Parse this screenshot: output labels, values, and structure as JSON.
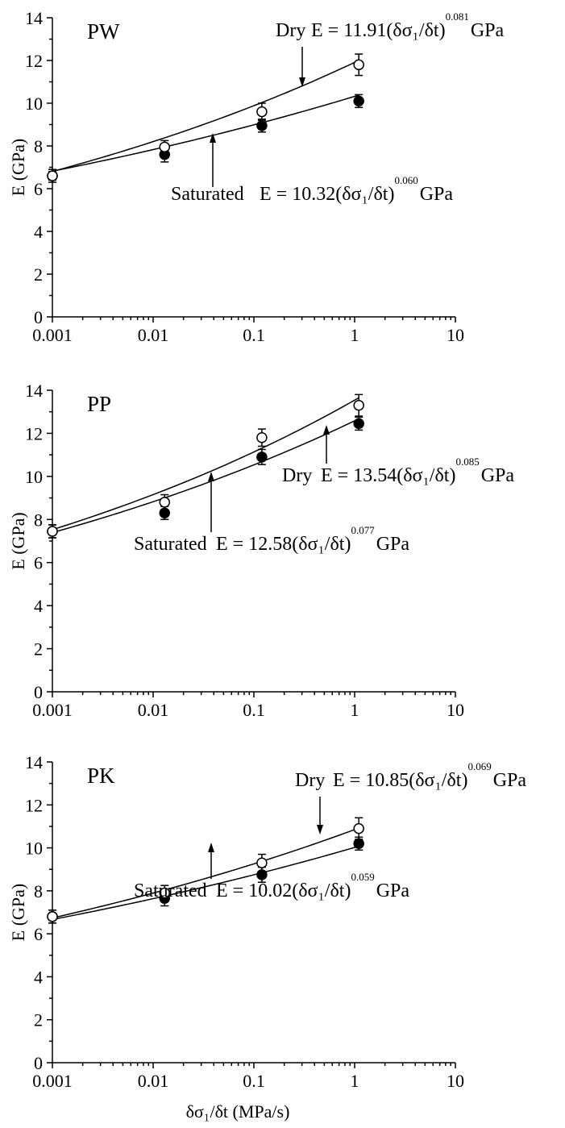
{
  "chart_data": [
    {
      "type": "scatter",
      "title": "PW",
      "y_label": "E (GPa)",
      "xscale": "log",
      "minor_ticks": true,
      "xlim": [
        0.001,
        10
      ],
      "ylim": [
        0,
        14
      ],
      "xticks": [
        0.001,
        0.01,
        0.1,
        1,
        10
      ],
      "yticks": [
        0,
        2,
        4,
        6,
        8,
        10,
        12,
        14
      ],
      "x": [
        0.001,
        0.013,
        0.12,
        1.1
      ],
      "series": [
        {
          "name": "Dry",
          "marker": "open",
          "color": "#000000",
          "values": [
            6.6,
            7.95,
            9.6,
            11.8
          ],
          "errors": [
            0.2,
            0.3,
            0.4,
            0.5
          ],
          "fit": {
            "lhs": "E =",
            "coef": 11.91,
            "base": "(δσ₁/δt)",
            "exponent": 0.081,
            "unit": "GPa"
          }
        },
        {
          "name": "Saturated",
          "marker": "filled",
          "color": "#000000",
          "values": [
            6.6,
            7.6,
            8.95,
            10.1
          ],
          "errors": [
            0.3,
            0.35,
            0.3,
            0.3
          ],
          "fit": {
            "lhs": "E =",
            "coef": 10.32,
            "base": "(δσ₁/δt)",
            "exponent": {
              "value": 0.06,
              "label": "0.060"
            },
            "unit": "GPa"
          }
        }
      ]
    },
    {
      "type": "scatter",
      "title": "PP",
      "y_label": "E (GPa)",
      "xscale": "log",
      "minor_ticks": true,
      "xlim": [
        0.001,
        10
      ],
      "ylim": [
        0,
        14
      ],
      "xticks": [
        0.001,
        0.01,
        0.1,
        1,
        10
      ],
      "yticks": [
        0,
        2,
        4,
        6,
        8,
        10,
        12,
        14
      ],
      "x": [
        0.001,
        0.013,
        0.12,
        1.1
      ],
      "series": [
        {
          "name": "Dry",
          "marker": "open",
          "color": "#000000",
          "values": [
            7.45,
            8.8,
            11.8,
            13.3
          ],
          "errors": [
            0.3,
            0.35,
            0.4,
            0.5
          ],
          "fit": {
            "lhs": "E =",
            "coef": 13.54,
            "base": "(δσ₁/δt)",
            "exponent": 0.085,
            "unit": "GPa"
          }
        },
        {
          "name": "Saturated",
          "marker": "filled",
          "color": "#000000",
          "values": [
            7.45,
            8.3,
            10.9,
            12.45
          ],
          "errors": [
            0.3,
            0.3,
            0.35,
            0.3
          ],
          "fit": {
            "lhs": "E =",
            "coef": 12.58,
            "base": "(δσ₁/δt)",
            "exponent": 0.077,
            "unit": "GPa"
          }
        }
      ]
    },
    {
      "type": "scatter",
      "title": "PK",
      "y_label": "E (GPa)",
      "x_label": "δσ₁/δt (MPa/s)",
      "xscale": "log",
      "minor_ticks": true,
      "xlim": [
        0.001,
        10
      ],
      "ylim": [
        0,
        14
      ],
      "xticks": [
        0.001,
        0.01,
        0.1,
        1,
        10
      ],
      "yticks": [
        0,
        2,
        4,
        6,
        8,
        10,
        12,
        14
      ],
      "x": [
        0.001,
        0.013,
        0.12,
        1.1
      ],
      "series": [
        {
          "name": "Dry",
          "marker": "open",
          "color": "#000000",
          "values": [
            6.8,
            7.9,
            9.3,
            10.9
          ],
          "errors": [
            0.3,
            0.35,
            0.4,
            0.5
          ],
          "fit": {
            "lhs": "E =",
            "coef": 10.85,
            "base": "(δσ₁/δt)",
            "exponent": 0.069,
            "unit": "GPa"
          }
        },
        {
          "name": "Saturated",
          "marker": "filled",
          "color": "#000000",
          "values": [
            6.8,
            7.65,
            8.75,
            10.2
          ],
          "errors": [
            0.3,
            0.35,
            0.35,
            0.3
          ],
          "fit": {
            "lhs": "E =",
            "coef": 10.02,
            "base": "(δσ₁/δt)",
            "exponent": 0.059,
            "unit": "GPa"
          }
        }
      ]
    }
  ]
}
